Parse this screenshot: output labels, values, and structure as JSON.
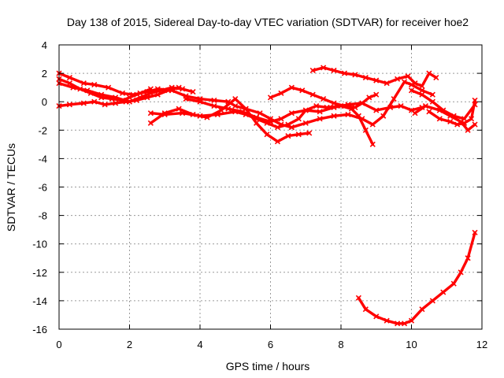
{
  "chart_data": {
    "type": "scatter",
    "title": "Day 138 of 2015, Sidereal Day-to-day VTEC variation (SDTVAR) for receiver hoe2",
    "xlabel": "GPS time / hours",
    "ylabel": "SDTVAR / TECUs",
    "xlim": [
      0,
      12
    ],
    "ylim": [
      -16,
      4
    ],
    "xticks": [
      0,
      2,
      4,
      6,
      8,
      10,
      12
    ],
    "yticks": [
      4,
      2,
      0,
      -2,
      -4,
      -6,
      -8,
      -10,
      -12,
      -14,
      -16
    ],
    "grid": true,
    "legend": "none",
    "marker_color": "#ff0000",
    "series": [
      {
        "name": "track-1",
        "x": [
          0.0,
          0.3,
          0.7,
          1.0,
          1.4,
          1.8,
          2.1,
          2.5,
          2.8,
          3.2,
          3.6,
          4.0,
          4.4,
          4.8,
          5.0,
          5.3,
          5.7,
          6.0,
          6.3,
          6.6
        ],
        "y": [
          2.0,
          1.7,
          1.3,
          1.2,
          1.0,
          0.6,
          0.5,
          0.7,
          0.9,
          0.8,
          0.4,
          0.2,
          0.1,
          0.0,
          -0.3,
          -0.5,
          -0.8,
          -1.2,
          -1.6,
          -1.8
        ]
      },
      {
        "name": "track-2",
        "x": [
          0.0,
          0.3,
          0.6,
          0.9,
          1.2,
          1.5,
          1.8,
          2.0,
          2.3,
          2.6
        ],
        "y": [
          1.6,
          1.3,
          0.9,
          0.6,
          0.3,
          0.2,
          0.1,
          0.3,
          0.6,
          0.9
        ]
      },
      {
        "name": "track-3",
        "x": [
          0.0,
          0.4,
          0.8,
          1.2,
          1.6,
          2.0,
          2.3,
          2.6,
          2.9,
          3.2,
          3.5,
          3.8
        ],
        "y": [
          1.3,
          1.0,
          0.8,
          0.5,
          0.3,
          0.0,
          0.3,
          0.6,
          0.8,
          1.0,
          0.9,
          0.7
        ]
      },
      {
        "name": "track-4",
        "x": [
          0.0,
          0.3,
          0.7,
          1.0,
          1.3,
          1.6,
          1.9,
          2.2,
          2.5,
          2.8,
          3.1,
          3.4
        ],
        "y": [
          -0.3,
          -0.2,
          -0.1,
          0.0,
          -0.2,
          -0.1,
          0.0,
          0.1,
          0.3,
          0.5,
          0.8,
          1.0
        ]
      },
      {
        "name": "track-5",
        "x": [
          2.6,
          3.0,
          3.4,
          3.8,
          4.2,
          4.6,
          5.0,
          5.3,
          5.6,
          5.9,
          6.2,
          6.5,
          6.8,
          7.1
        ],
        "y": [
          -1.5,
          -0.8,
          -0.5,
          -0.9,
          -1.1,
          -0.6,
          0.2,
          -0.5,
          -1.5,
          -2.3,
          -2.8,
          -2.4,
          -2.3,
          -2.2
        ]
      },
      {
        "name": "track-6",
        "x": [
          2.6,
          3.0,
          3.5,
          4.0,
          4.5,
          5.0,
          5.3,
          5.6,
          5.9,
          6.2,
          6.5,
          6.8,
          7.0,
          7.3,
          7.6,
          8.0,
          8.3,
          8.5,
          8.7,
          8.9
        ],
        "y": [
          -0.8,
          -0.9,
          -0.8,
          -1.0,
          -0.9,
          -0.7,
          -0.9,
          -1.2,
          -1.5,
          -1.8,
          -1.6,
          -1.2,
          -0.6,
          -0.3,
          -0.4,
          -0.3,
          -0.5,
          -1.0,
          -2.0,
          -3.0
        ]
      },
      {
        "name": "track-7",
        "x": [
          3.6,
          4.0,
          4.4,
          4.8,
          5.2,
          5.6,
          6.0,
          6.3,
          6.6,
          7.0,
          7.4,
          7.8,
          8.2,
          8.6,
          9.0,
          9.4,
          9.7,
          10.0,
          10.3
        ],
        "y": [
          0.2,
          0.0,
          -0.3,
          -0.5,
          -0.7,
          -1.1,
          -1.4,
          -1.2,
          -0.8,
          -0.6,
          -0.7,
          -0.4,
          -0.2,
          -0.1,
          -0.6,
          -0.4,
          -0.3,
          -0.6,
          -0.4
        ]
      },
      {
        "name": "track-8",
        "x": [
          6.6,
          7.0,
          7.4,
          7.8,
          8.2,
          8.6,
          8.9,
          9.2,
          9.5,
          9.8,
          10.0,
          10.3,
          10.6
        ],
        "y": [
          -1.8,
          -1.5,
          -1.2,
          -1.0,
          -0.9,
          -1.2,
          -1.6,
          -1.0,
          0.2,
          1.4,
          1.2,
          0.8,
          0.5
        ]
      },
      {
        "name": "track-9",
        "x": [
          6.0,
          6.3,
          6.6,
          6.9,
          7.2,
          7.5,
          7.8,
          8.1,
          8.4,
          8.6,
          8.8,
          9.0
        ],
        "y": [
          0.3,
          0.6,
          1.0,
          0.8,
          0.5,
          0.2,
          -0.1,
          -0.3,
          -0.4,
          -0.1,
          0.3,
          0.5
        ]
      },
      {
        "name": "track-10",
        "x": [
          7.2,
          7.5,
          7.8,
          8.1,
          8.4,
          8.7,
          9.0,
          9.3,
          9.6,
          9.9,
          10.1,
          10.3,
          10.5,
          10.7
        ],
        "y": [
          2.2,
          2.4,
          2.2,
          2.0,
          1.9,
          1.7,
          1.5,
          1.3,
          1.6,
          1.8,
          1.3,
          1.1,
          2.0,
          1.7
        ]
      },
      {
        "name": "track-11",
        "x": [
          10.0,
          10.3,
          10.6,
          10.9,
          11.2,
          11.5,
          11.8
        ],
        "y": [
          0.8,
          0.5,
          0.0,
          -0.6,
          -1.0,
          -1.2,
          -0.2
        ]
      },
      {
        "name": "track-12",
        "x": [
          10.1,
          10.4,
          10.8,
          11.1,
          11.4,
          11.6,
          11.8
        ],
        "y": [
          -0.8,
          -0.3,
          -0.6,
          -1.0,
          -1.4,
          -2.0,
          -1.6
        ]
      },
      {
        "name": "track-13",
        "x": [
          10.5,
          10.8,
          11.1,
          11.3,
          11.5,
          11.7,
          11.8
        ],
        "y": [
          -0.7,
          -1.2,
          -1.4,
          -1.6,
          -1.5,
          -1.2,
          0.1
        ]
      },
      {
        "name": "track-14",
        "x": [
          8.5,
          8.7,
          9.0,
          9.3,
          9.6,
          9.8,
          10.0,
          10.3,
          10.6,
          10.9,
          11.2,
          11.4,
          11.6,
          11.8
        ],
        "y": [
          -13.8,
          -14.6,
          -15.1,
          -15.4,
          -15.6,
          -15.6,
          -15.4,
          -14.6,
          -14.0,
          -13.4,
          -12.8,
          -12.0,
          -11.0,
          -9.2
        ]
      }
    ]
  }
}
